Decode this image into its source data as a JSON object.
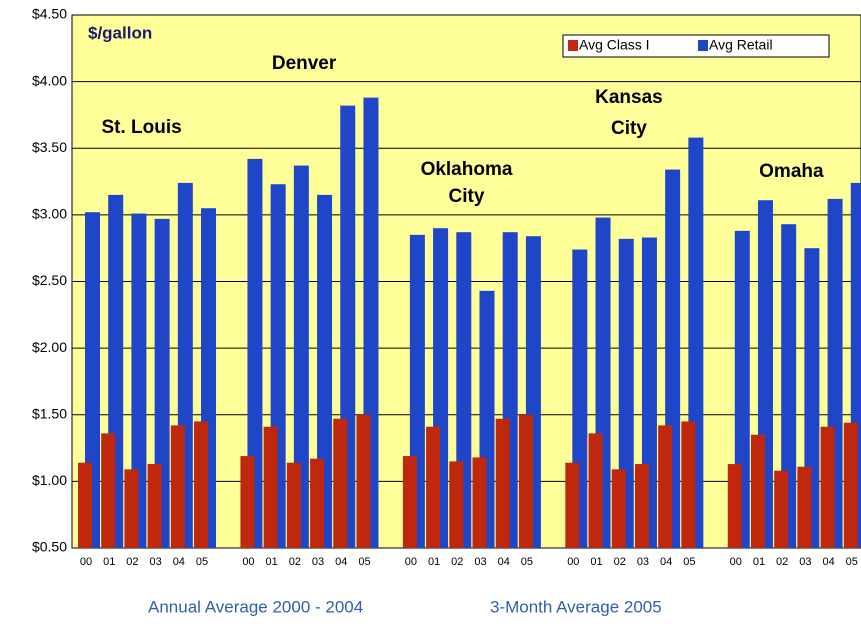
{
  "chart_data": {
    "type": "bar",
    "y_label": "$/gallon",
    "footnotes": [
      "Annual Average 2000 - 2004",
      "3-Month Average 2005"
    ],
    "groups": [
      {
        "lines": [
          "St. Louis"
        ]
      },
      {
        "lines": [
          "Denver"
        ]
      },
      {
        "lines": [
          "Oklahoma",
          "City"
        ]
      },
      {
        "lines": [
          "Kansas",
          "City"
        ]
      },
      {
        "lines": [
          "Omaha"
        ]
      }
    ],
    "categories": [
      "00",
      "01",
      "02",
      "03",
      "04",
      "05",
      null,
      "00",
      "01",
      "02",
      "03",
      "04",
      "05",
      null,
      "00",
      "01",
      "02",
      "03",
      "04",
      "05",
      null,
      "00",
      "01",
      "02",
      "03",
      "04",
      "05",
      null,
      "00",
      "01",
      "02",
      "03",
      "04",
      "05"
    ],
    "series": [
      {
        "name": "Avg Class I",
        "color": "#c0280e",
        "values": [
          1.14,
          1.36,
          1.09,
          1.13,
          1.42,
          1.45,
          null,
          1.19,
          1.41,
          1.14,
          1.17,
          1.47,
          1.5,
          null,
          1.19,
          1.41,
          1.15,
          1.18,
          1.47,
          1.5,
          null,
          1.14,
          1.36,
          1.09,
          1.13,
          1.42,
          1.45,
          null,
          1.13,
          1.35,
          1.08,
          1.11,
          1.41,
          1.44
        ]
      },
      {
        "name": "Avg Retail",
        "color": "#1f45c8",
        "values": [
          3.02,
          3.15,
          3.01,
          2.97,
          3.24,
          3.05,
          null,
          3.42,
          3.23,
          3.37,
          3.15,
          3.82,
          3.88,
          null,
          2.85,
          2.9,
          2.87,
          2.43,
          2.87,
          2.84,
          null,
          2.74,
          2.98,
          2.82,
          2.83,
          3.34,
          3.58,
          null,
          2.88,
          3.11,
          2.93,
          2.75,
          3.12,
          3.24
        ]
      }
    ],
    "ylim": [
      0.5,
      4.5
    ],
    "yticks": [
      {
        "value": 0.5,
        "label": "$0.50"
      },
      {
        "value": 1,
        "label": "$1.00"
      },
      {
        "value": 1.5,
        "label": "$1.50"
      },
      {
        "value": 2,
        "label": "$2.00"
      },
      {
        "value": 2.5,
        "label": "$2.50"
      },
      {
        "value": 3,
        "label": "$3.00"
      },
      {
        "value": 3.5,
        "label": "$3.50"
      },
      {
        "value": 4,
        "label": "$4.00"
      },
      {
        "value": 4.5,
        "label": "$4.50"
      }
    ],
    "grid": true,
    "legend": "upper right"
  }
}
